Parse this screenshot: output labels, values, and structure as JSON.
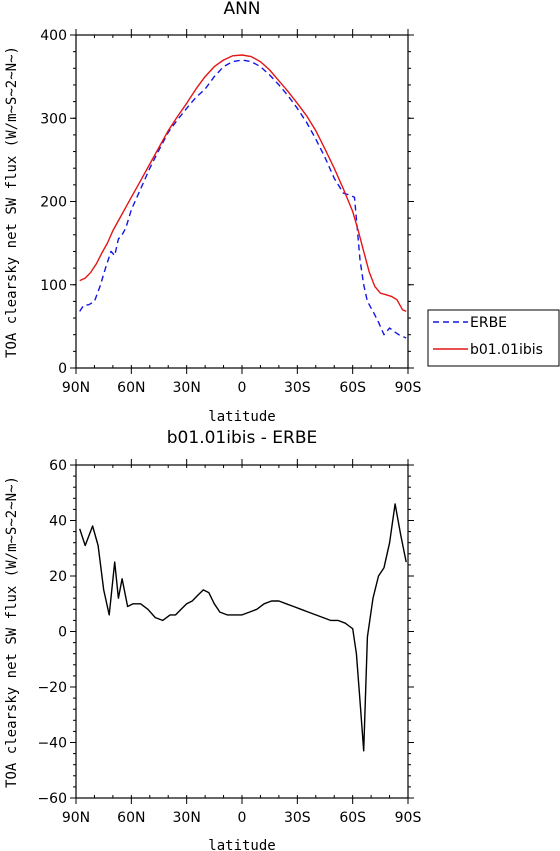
{
  "chart_data": [
    {
      "type": "line",
      "title": "ANN",
      "xlabel": "latitude",
      "ylabel": "TOA clearsky net SW flux (W/m~S~2~N~)",
      "xlim": [
        -90,
        90
      ],
      "ylim": [
        0,
        400
      ],
      "x_ticks": [
        -90,
        -60,
        -30,
        0,
        30,
        60,
        90
      ],
      "x_tick_labels": [
        "90N",
        "60N",
        "30N",
        "0",
        "30S",
        "60S",
        "90S"
      ],
      "y_ticks": [
        0,
        100,
        200,
        300,
        400
      ],
      "legend_position": "right",
      "series": [
        {
          "name": "ERBE",
          "color": "#1515e6",
          "dash": "dashed",
          "x": [
            -88,
            -86,
            -83,
            -80,
            -77,
            -74,
            -71,
            -69,
            -67,
            -65,
            -63,
            -60,
            -55,
            -50,
            -45,
            -40,
            -35,
            -30,
            -25,
            -20,
            -15,
            -10,
            -5,
            0,
            5,
            10,
            15,
            20,
            25,
            30,
            35,
            40,
            45,
            50,
            55,
            58,
            61,
            64,
            66,
            68,
            71,
            74,
            77,
            80,
            83,
            85,
            87,
            89
          ],
          "values": [
            68,
            75,
            76,
            80,
            98,
            120,
            140,
            135,
            155,
            160,
            168,
            190,
            215,
            240,
            262,
            283,
            298,
            312,
            325,
            335,
            350,
            362,
            368,
            370,
            368,
            362,
            352,
            340,
            327,
            312,
            295,
            275,
            253,
            228,
            210,
            208,
            205,
            130,
            100,
            80,
            68,
            55,
            40,
            48,
            43,
            40,
            38,
            36
          ]
        },
        {
          "name": "b01.01ibis",
          "color": "#e51515",
          "dash": "solid",
          "x": [
            -88,
            -85,
            -82,
            -79,
            -76,
            -73,
            -70,
            -65,
            -60,
            -55,
            -50,
            -45,
            -40,
            -35,
            -30,
            -25,
            -20,
            -15,
            -10,
            -5,
            0,
            5,
            10,
            15,
            20,
            25,
            30,
            35,
            40,
            45,
            50,
            55,
            60,
            63,
            66,
            69,
            72,
            75,
            78,
            81,
            84,
            87,
            89
          ],
          "values": [
            105,
            108,
            115,
            125,
            138,
            150,
            165,
            185,
            205,
            225,
            245,
            265,
            285,
            302,
            318,
            335,
            350,
            362,
            370,
            375,
            376,
            374,
            368,
            358,
            345,
            332,
            318,
            303,
            285,
            263,
            240,
            215,
            188,
            165,
            140,
            115,
            98,
            90,
            88,
            86,
            82,
            70,
            68
          ]
        }
      ]
    },
    {
      "type": "line",
      "title": "b01.01ibis - ERBE",
      "xlabel": "latitude",
      "ylabel": "TOA clearsky net SW flux (W/m~S~2~N~)",
      "xlim": [
        -90,
        90
      ],
      "ylim": [
        -60,
        60
      ],
      "x_ticks": [
        -90,
        -60,
        -30,
        0,
        30,
        60,
        90
      ],
      "x_tick_labels": [
        "90N",
        "60N",
        "30N",
        "0",
        "30S",
        "60S",
        "90S"
      ],
      "y_ticks": [
        -60,
        -40,
        -20,
        0,
        20,
        40,
        60
      ],
      "series": [
        {
          "color": "#000000",
          "dash": "solid",
          "x": [
            -88,
            -85,
            -81,
            -78,
            -75,
            -72,
            -69,
            -67,
            -65,
            -62,
            -59,
            -55,
            -51,
            -47,
            -43,
            -39,
            -36,
            -33,
            -30,
            -27,
            -24,
            -21,
            -18,
            -15,
            -12,
            -8,
            -4,
            0,
            4,
            8,
            12,
            16,
            20,
            24,
            28,
            32,
            36,
            40,
            44,
            48,
            52,
            56,
            58,
            60,
            62,
            64,
            66,
            68,
            71,
            74,
            77,
            80,
            83,
            86,
            89
          ],
          "values": [
            37,
            31,
            38,
            31,
            15,
            6,
            25,
            12,
            19,
            9,
            10,
            10,
            8,
            5,
            4,
            6,
            6,
            8,
            10,
            11,
            13,
            15,
            14,
            10,
            7,
            6,
            6,
            6,
            7,
            8,
            10,
            11,
            11,
            10,
            9,
            8,
            7,
            6,
            5,
            4,
            4,
            3,
            2,
            1,
            -8,
            -25,
            -43,
            -2,
            12,
            20,
            23,
            32,
            46,
            35,
            25
          ]
        }
      ]
    }
  ]
}
